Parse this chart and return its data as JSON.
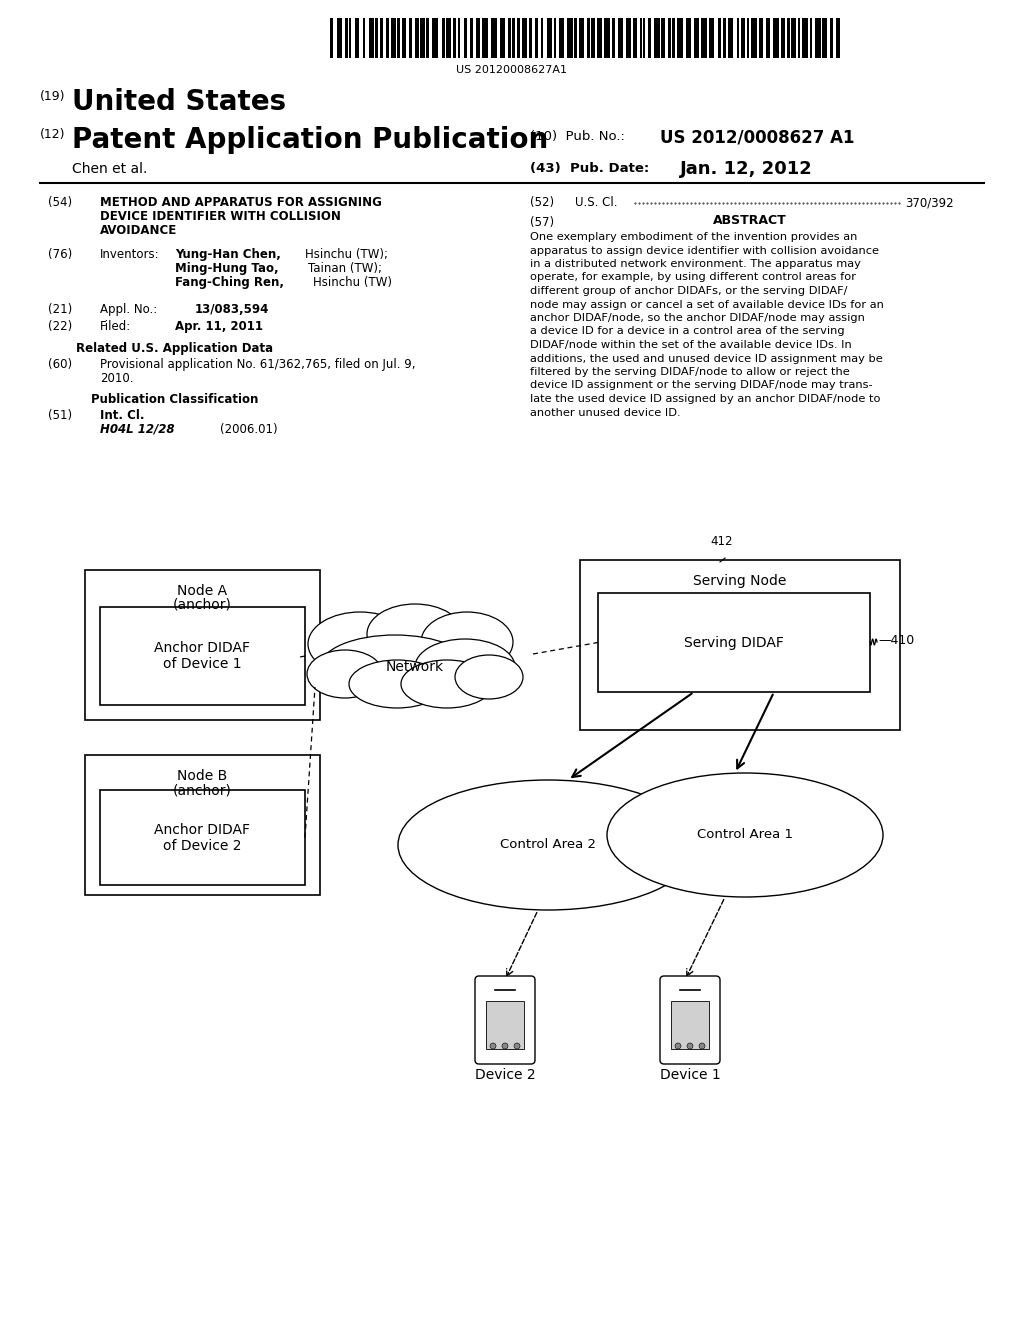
{
  "background_color": "#ffffff",
  "barcode_text": "US 20120008627A1"
}
